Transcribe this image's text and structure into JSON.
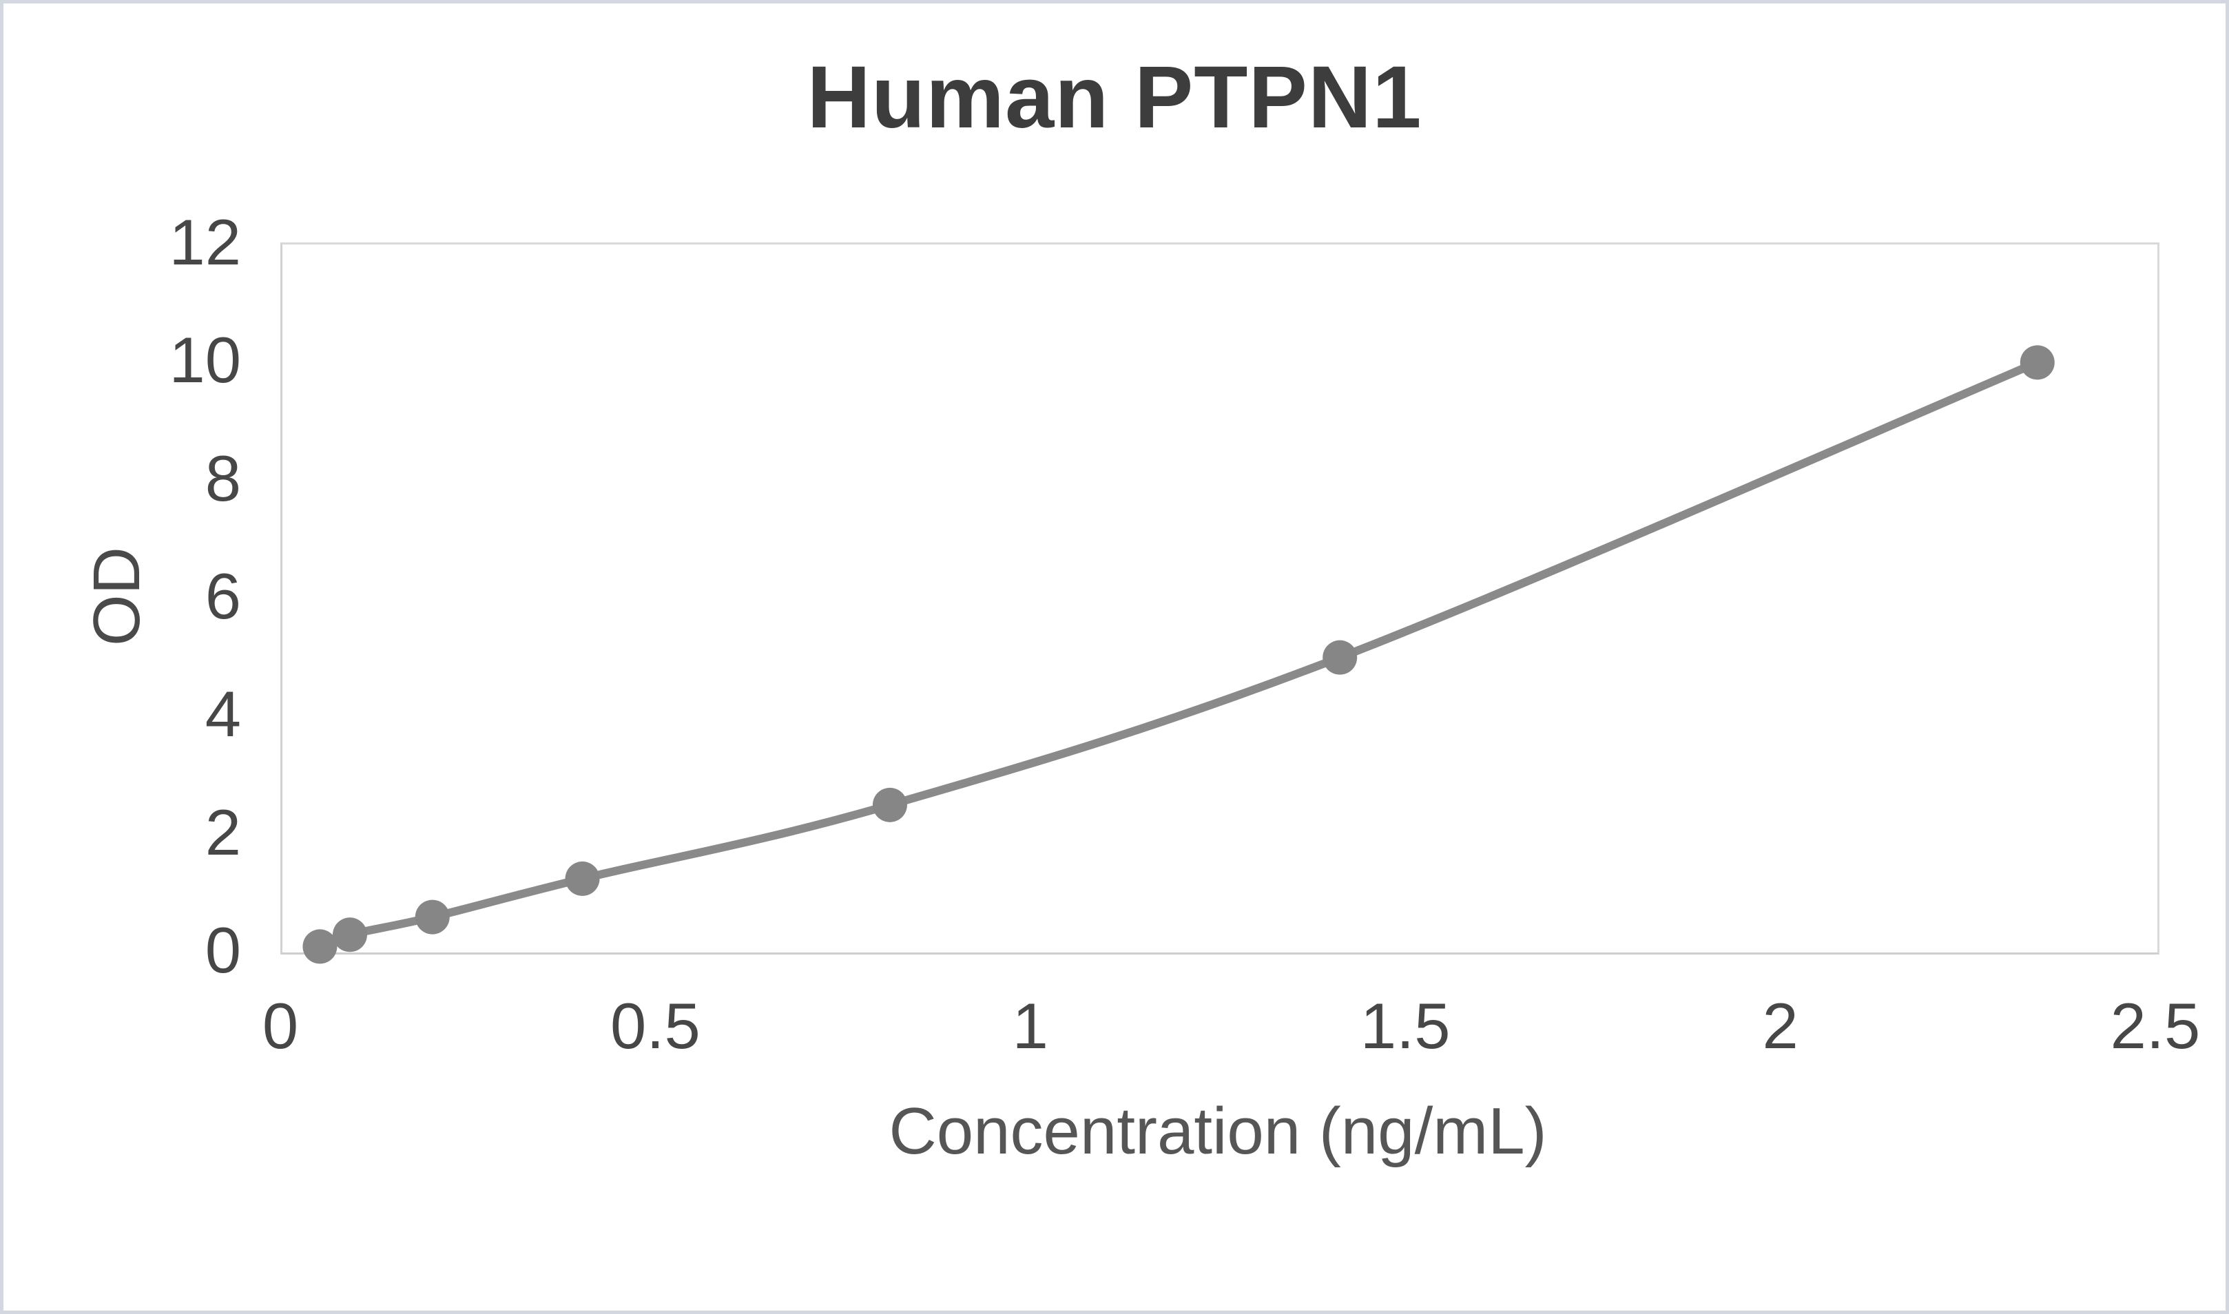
{
  "chart": {
    "title": "Human PTPN1",
    "x_axis_title": "Concentration (ng/mL)",
    "y_axis_title": "OD"
  },
  "chart_data": {
    "type": "scatter",
    "title": "Human PTPN1",
    "xlabel": "Concentration (ng/mL)",
    "ylabel": "OD",
    "x": [
      0.05,
      0.09,
      0.2,
      0.4,
      0.81,
      1.41,
      2.34
    ],
    "y": [
      0.1,
      0.3,
      0.6,
      1.25,
      2.5,
      5.0,
      10.0
    ],
    "xlim": [
      0,
      2.5
    ],
    "ylim": [
      0,
      12
    ],
    "x_tick_values": [
      0,
      0.5,
      1,
      1.5,
      2,
      2.5
    ],
    "x_tick_labels": [
      "0",
      "0.5",
      "1",
      "1.5",
      "2",
      "2.5"
    ],
    "y_tick_values": [
      0,
      2,
      4,
      6,
      8,
      10,
      12
    ],
    "y_tick_labels": [
      "0",
      "2",
      "4",
      "6",
      "8",
      "10",
      "12"
    ],
    "grid": false,
    "legend_position": "none",
    "line_style": "smooth",
    "colors": {
      "line": "#8a8a8a",
      "marker": "#868686",
      "plot_border": "#d9d9d9",
      "frame_border": "#d3d8e0",
      "title_text": "#3d3d3d",
      "tick_text": "#474747",
      "axis_title_text": "#565656"
    }
  }
}
